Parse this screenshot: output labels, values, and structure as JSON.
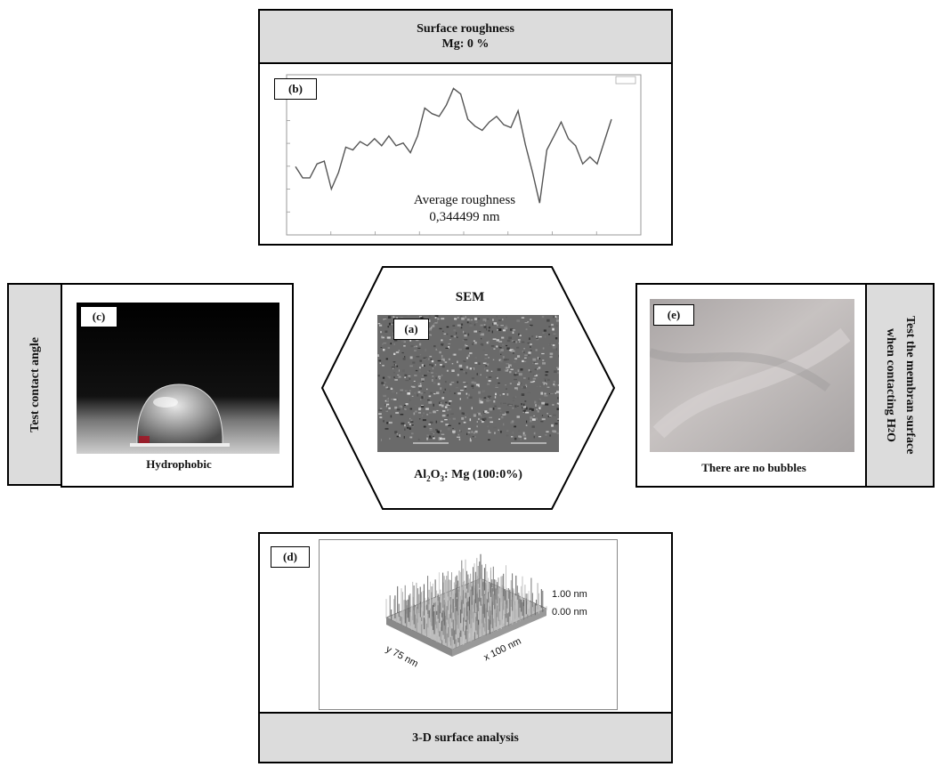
{
  "top": {
    "header_line1": "Surface roughness",
    "header_line2": "Mg: 0 %",
    "tag": "(b)",
    "annotation_line1": "Average roughness",
    "annotation_line2": "0,344499 nm"
  },
  "left": {
    "side_label": "Test contact angle",
    "tag": "(c)",
    "caption": "Hydrophobic"
  },
  "center": {
    "title": "SEM",
    "tag": "(a)",
    "caption_prefix": "Al",
    "caption_sub1": "2",
    "caption_mid": "O",
    "caption_sub2": "3",
    "caption_suffix": ": Mg (100:0%)"
  },
  "right": {
    "side_label_line1": "Test the membran surface",
    "side_label_line2": "when contacting H",
    "side_label_sub": "2",
    "side_label_end": "O",
    "tag": "(e)",
    "caption": "There are no bubbles"
  },
  "bottom": {
    "tag": "(d)",
    "footer": "3-D surface analysis",
    "z_label_top": "1.00 nm",
    "z_label_bottom": "0.00 nm",
    "x_axis": "x 100 nm",
    "y_axis": "y 75 nm"
  },
  "colors": {
    "box_gray": "#dcdcdc",
    "line": "#555555",
    "sem_bg": "#6a6a6a",
    "wet_bg": "#b8b4b3"
  }
}
